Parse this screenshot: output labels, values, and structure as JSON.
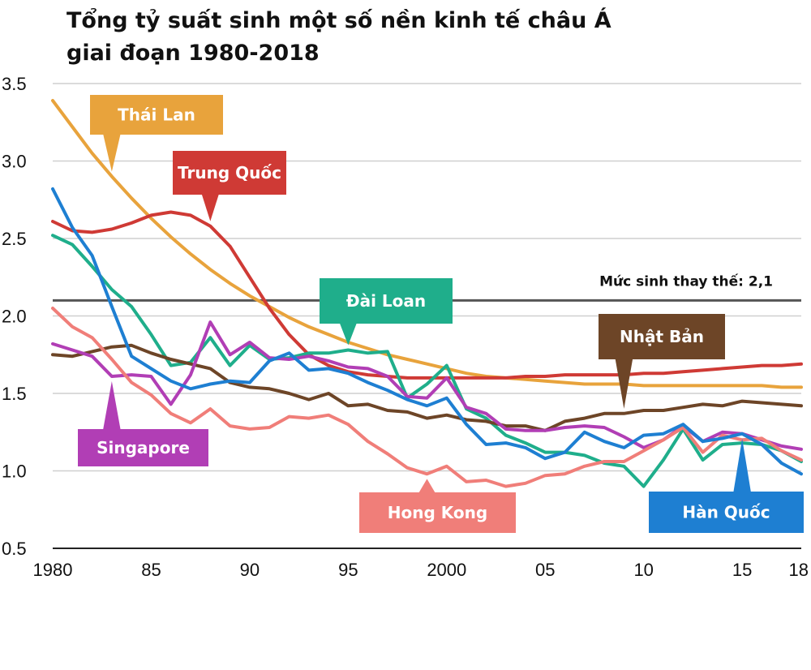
{
  "chart_data": {
    "type": "line",
    "title_line1": "Tổng tỷ suất sinh một số nền kinh tế châu Á",
    "title_line2": "giai đoạn 1980-2018",
    "xlabel": "",
    "ylabel": "",
    "xlim": [
      1980,
      2018
    ],
    "ylim": [
      0.5,
      3.5
    ],
    "grid": true,
    "y_ticks": [
      {
        "value": 3.5,
        "label": "3.5"
      },
      {
        "value": 3.0,
        "label": "3.0"
      },
      {
        "value": 2.5,
        "label": "2.5"
      },
      {
        "value": 2.0,
        "label": "2.0"
      },
      {
        "value": 1.5,
        "label": "1.5"
      },
      {
        "value": 1.0,
        "label": "1.0"
      },
      {
        "value": 0.5,
        "label": "0.5"
      }
    ],
    "x_ticks": [
      {
        "value": 1980,
        "label": "1980"
      },
      {
        "value": 1985,
        "label": "85"
      },
      {
        "value": 1990,
        "label": "90"
      },
      {
        "value": 1995,
        "label": "95"
      },
      {
        "value": 2000,
        "label": "2000"
      },
      {
        "value": 2005,
        "label": "05"
      },
      {
        "value": 2010,
        "label": "10"
      },
      {
        "value": 2015,
        "label": "15"
      },
      {
        "value": 2018,
        "label": "18"
      }
    ],
    "reference_line": {
      "value": 2.1,
      "label": "Mức sinh thay thế: 2,1",
      "color": "#555555"
    },
    "x": [
      1980,
      1981,
      1982,
      1983,
      1984,
      1985,
      1986,
      1987,
      1988,
      1989,
      1990,
      1991,
      1992,
      1993,
      1994,
      1995,
      1996,
      1997,
      1998,
      1999,
      2000,
      2001,
      2002,
      2003,
      2004,
      2005,
      2006,
      2007,
      2008,
      2009,
      2010,
      2011,
      2012,
      2013,
      2014,
      2015,
      2016,
      2017,
      2018
    ],
    "series": [
      {
        "name": "Thái Lan",
        "color": "#e8a33c",
        "values": [
          3.39,
          3.22,
          3.05,
          2.9,
          2.76,
          2.63,
          2.51,
          2.4,
          2.3,
          2.21,
          2.13,
          2.06,
          1.99,
          1.93,
          1.88,
          1.83,
          1.79,
          1.75,
          1.72,
          1.69,
          1.66,
          1.63,
          1.61,
          1.6,
          1.59,
          1.58,
          1.57,
          1.56,
          1.56,
          1.56,
          1.55,
          1.55,
          1.55,
          1.55,
          1.55,
          1.55,
          1.55,
          1.54,
          1.54
        ]
      },
      {
        "name": "Trung Quốc",
        "color": "#cf3a35",
        "values": [
          2.61,
          2.55,
          2.54,
          2.56,
          2.6,
          2.65,
          2.67,
          2.65,
          2.58,
          2.45,
          2.25,
          2.05,
          1.88,
          1.75,
          1.68,
          1.64,
          1.62,
          1.61,
          1.6,
          1.6,
          1.6,
          1.6,
          1.6,
          1.6,
          1.61,
          1.61,
          1.62,
          1.62,
          1.62,
          1.62,
          1.63,
          1.63,
          1.64,
          1.65,
          1.66,
          1.67,
          1.68,
          1.68,
          1.69
        ]
      },
      {
        "name": "Đài Loan",
        "color": "#1fae8b",
        "values": [
          2.52,
          2.46,
          2.32,
          2.17,
          2.06,
          1.88,
          1.68,
          1.7,
          1.86,
          1.68,
          1.81,
          1.72,
          1.73,
          1.76,
          1.76,
          1.78,
          1.76,
          1.77,
          1.47,
          1.56,
          1.68,
          1.4,
          1.34,
          1.23,
          1.18,
          1.12,
          1.12,
          1.1,
          1.05,
          1.03,
          0.9,
          1.07,
          1.27,
          1.07,
          1.17,
          1.18,
          1.17,
          1.13,
          1.06
        ]
      },
      {
        "name": "Nhật Bản",
        "color": "#6d4527",
        "values": [
          1.75,
          1.74,
          1.77,
          1.8,
          1.81,
          1.76,
          1.72,
          1.69,
          1.66,
          1.57,
          1.54,
          1.53,
          1.5,
          1.46,
          1.5,
          1.42,
          1.43,
          1.39,
          1.38,
          1.34,
          1.36,
          1.33,
          1.32,
          1.29,
          1.29,
          1.26,
          1.32,
          1.34,
          1.37,
          1.37,
          1.39,
          1.39,
          1.41,
          1.43,
          1.42,
          1.45,
          1.44,
          1.43,
          1.42
        ]
      },
      {
        "name": "Singapore",
        "color": "#b13eb5",
        "values": [
          1.82,
          1.78,
          1.74,
          1.61,
          1.62,
          1.61,
          1.43,
          1.62,
          1.96,
          1.75,
          1.83,
          1.73,
          1.72,
          1.74,
          1.71,
          1.67,
          1.66,
          1.61,
          1.48,
          1.47,
          1.6,
          1.41,
          1.37,
          1.27,
          1.26,
          1.26,
          1.28,
          1.29,
          1.28,
          1.22,
          1.15,
          1.2,
          1.29,
          1.19,
          1.25,
          1.24,
          1.2,
          1.16,
          1.14
        ]
      },
      {
        "name": "Hong Kong",
        "color": "#f07e79",
        "values": [
          2.05,
          1.93,
          1.86,
          1.72,
          1.57,
          1.49,
          1.37,
          1.31,
          1.4,
          1.29,
          1.27,
          1.28,
          1.35,
          1.34,
          1.36,
          1.3,
          1.19,
          1.11,
          1.02,
          0.98,
          1.03,
          0.93,
          0.94,
          0.9,
          0.92,
          0.97,
          0.98,
          1.03,
          1.06,
          1.06,
          1.13,
          1.2,
          1.28,
          1.12,
          1.23,
          1.2,
          1.21,
          1.13,
          1.07
        ]
      },
      {
        "name": "Hàn Quốc",
        "color": "#1e7fd2",
        "values": [
          2.82,
          2.57,
          2.39,
          2.06,
          1.74,
          1.66,
          1.58,
          1.53,
          1.56,
          1.58,
          1.57,
          1.71,
          1.76,
          1.65,
          1.66,
          1.63,
          1.57,
          1.52,
          1.46,
          1.42,
          1.47,
          1.3,
          1.17,
          1.18,
          1.15,
          1.08,
          1.12,
          1.25,
          1.19,
          1.15,
          1.23,
          1.24,
          1.3,
          1.19,
          1.21,
          1.24,
          1.17,
          1.05,
          0.98
        ]
      }
    ],
    "callouts": [
      {
        "series": "Thái Lan",
        "text": "Thái Lan"
      },
      {
        "series": "Trung Quốc",
        "text": "Trung Quốc"
      },
      {
        "series": "Đài Loan",
        "text": "Đài Loan"
      },
      {
        "series": "Nhật Bản",
        "text": "Nhật Bản"
      },
      {
        "series": "Singapore",
        "text": "Singapore"
      },
      {
        "series": "Hong Kong",
        "text": "Hong Kong"
      },
      {
        "series": "Hàn Quốc",
        "text": "Hàn Quốc"
      }
    ]
  }
}
